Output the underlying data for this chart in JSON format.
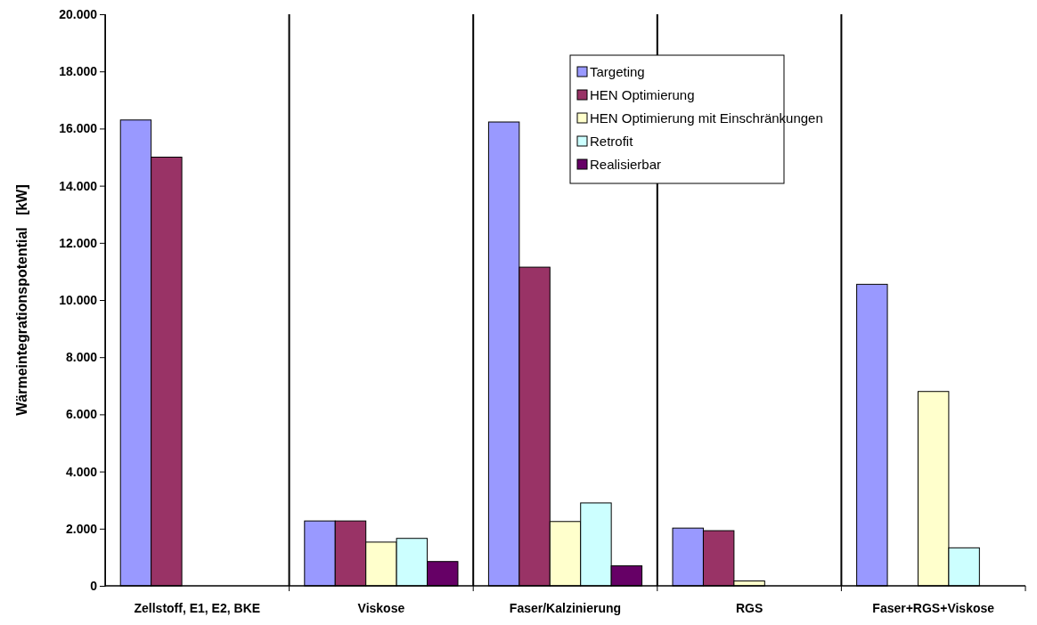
{
  "chart_data": {
    "type": "bar",
    "ylabel": "Wärmeintegrationspotential   [kW]",
    "categories": [
      "Zellstoff, E1, E2, BKE",
      "Viskose",
      "Faser/Kalzinierung",
      "RGS",
      "Faser+RGS+Viskose"
    ],
    "series": [
      {
        "name": "Targeting",
        "color": "#9999ff",
        "values": [
          16300,
          2270,
          16230,
          2020,
          10550
        ]
      },
      {
        "name": "HEN Optimierung",
        "color": "#993366",
        "values": [
          15000,
          2270,
          11150,
          1930,
          null
        ]
      },
      {
        "name": "HEN Optimierung mit Einschränkungen",
        "color": "#ffffcc",
        "values": [
          null,
          1530,
          2250,
          170,
          6800
        ]
      },
      {
        "name": "Retrofit",
        "color": "#ccffff",
        "values": [
          null,
          1660,
          2900,
          null,
          1330
        ]
      },
      {
        "name": "Realisierbar",
        "color": "#660066",
        "values": [
          null,
          850,
          700,
          null,
          null
        ]
      }
    ],
    "ylim": [
      0,
      20000
    ],
    "yticks": [
      {
        "value": 0,
        "label": "0"
      },
      {
        "value": 2000,
        "label": "2.000"
      },
      {
        "value": 4000,
        "label": "4.000"
      },
      {
        "value": 6000,
        "label": "6.000"
      },
      {
        "value": 8000,
        "label": "8.000"
      },
      {
        "value": 10000,
        "label": "10.000"
      },
      {
        "value": 12000,
        "label": "12.000"
      },
      {
        "value": 14000,
        "label": "14.000"
      },
      {
        "value": 16000,
        "label": "16.000"
      },
      {
        "value": 18000,
        "label": "18.000"
      },
      {
        "value": 20000,
        "label": "20.000"
      }
    ],
    "grid": false,
    "legend": "top right"
  }
}
